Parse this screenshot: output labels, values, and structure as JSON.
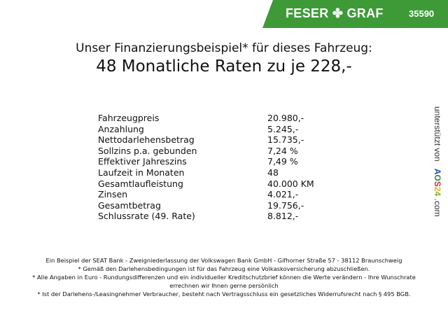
{
  "header": {
    "brand": "FESER ✤ GRAF",
    "code": "35590",
    "color": "#3d9a37"
  },
  "title": {
    "line1": "Unser Finanzierungsbeispiel* für dieses Fahrzeug:",
    "line2": "48 Monatliche Raten zu je 228,-"
  },
  "rows": [
    {
      "label": "Fahrzeugpreis",
      "value": "20.980,-"
    },
    {
      "label": "Anzahlung",
      "value": "5.245,-"
    },
    {
      "label": "Nettodarlehensbetrag",
      "value": "15.735,-"
    },
    {
      "label": "Sollzins p.a. gebunden",
      "value": "7,24 %"
    },
    {
      "label": "Effektiver Jahreszins",
      "value": "7,49 %"
    },
    {
      "label": "Laufzeit in Monaten",
      "value": "48"
    },
    {
      "label": "Gesamtlaufleistung",
      "value": "40.000 KM"
    },
    {
      "label": "Zinsen",
      "value": "4.021,-"
    },
    {
      "label": "Gesamtbetrag",
      "value": "19.756,-"
    },
    {
      "label": "Schlussrate (49. Rate)",
      "value": "8.812,-"
    }
  ],
  "side": {
    "prefix": "unterstützt von",
    "logo": "AOS24",
    "suffix": ".com"
  },
  "footer": [
    "Ein Beispiel der SEAT Bank - Zweigniederlassung der Volkswagen Bank GmbH - Gifhorner Straße 57 - 38112 Braunschweig",
    "* Gemäß den Darlehensbedingungen ist für das Fahrzeug eine Volkaskoversicherung abzuschließen.",
    "* Alle Angaben in Euro - Rundungsdifferenzen und ein individueller Kreditschutzbrief können die Werte verändern - Ihre Wunschrate errechnen wir Ihnen gerne persönlich",
    "* Ist der Darlehens-/Leasingnehmer Verbraucher, besteht nach Vertragsschluss ein gesetzliches Widerrufsrecht nach § 495 BGB."
  ]
}
